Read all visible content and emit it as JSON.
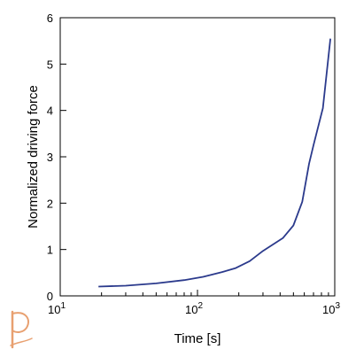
{
  "chart_data": {
    "type": "line",
    "title": "",
    "xlabel": "Time [s]",
    "ylabel": "Normalized driving force",
    "xscale": "log",
    "xlim": [
      10,
      1000
    ],
    "ylim": [
      0,
      6
    ],
    "grid": false,
    "legend": "none",
    "x_ticks": [
      {
        "value": 10,
        "base": "10",
        "exp": "1"
      },
      {
        "value": 100,
        "base": "10",
        "exp": "2"
      },
      {
        "value": 1000,
        "base": "10",
        "exp": "3"
      }
    ],
    "y_ticks": [
      {
        "value": 0,
        "label": "0"
      },
      {
        "value": 1,
        "label": "1"
      },
      {
        "value": 2,
        "label": "2"
      },
      {
        "value": 3,
        "label": "3"
      },
      {
        "value": 4,
        "label": "4"
      },
      {
        "value": 5,
        "label": "5"
      },
      {
        "value": 6,
        "label": "6"
      }
    ],
    "series": [
      {
        "color": "#2b3a8c",
        "x": [
          19,
          30,
          50,
          80,
          110,
          150,
          190,
          240,
          300,
          420,
          500,
          580,
          650,
          700,
          820,
          930
        ],
        "y": [
          0.2,
          0.22,
          0.27,
          0.34,
          0.41,
          0.51,
          0.6,
          0.75,
          0.97,
          1.25,
          1.52,
          2.03,
          2.85,
          3.25,
          4.05,
          5.55
        ]
      }
    ]
  },
  "logo": {
    "glyph": "P",
    "color": "#e8a070"
  }
}
